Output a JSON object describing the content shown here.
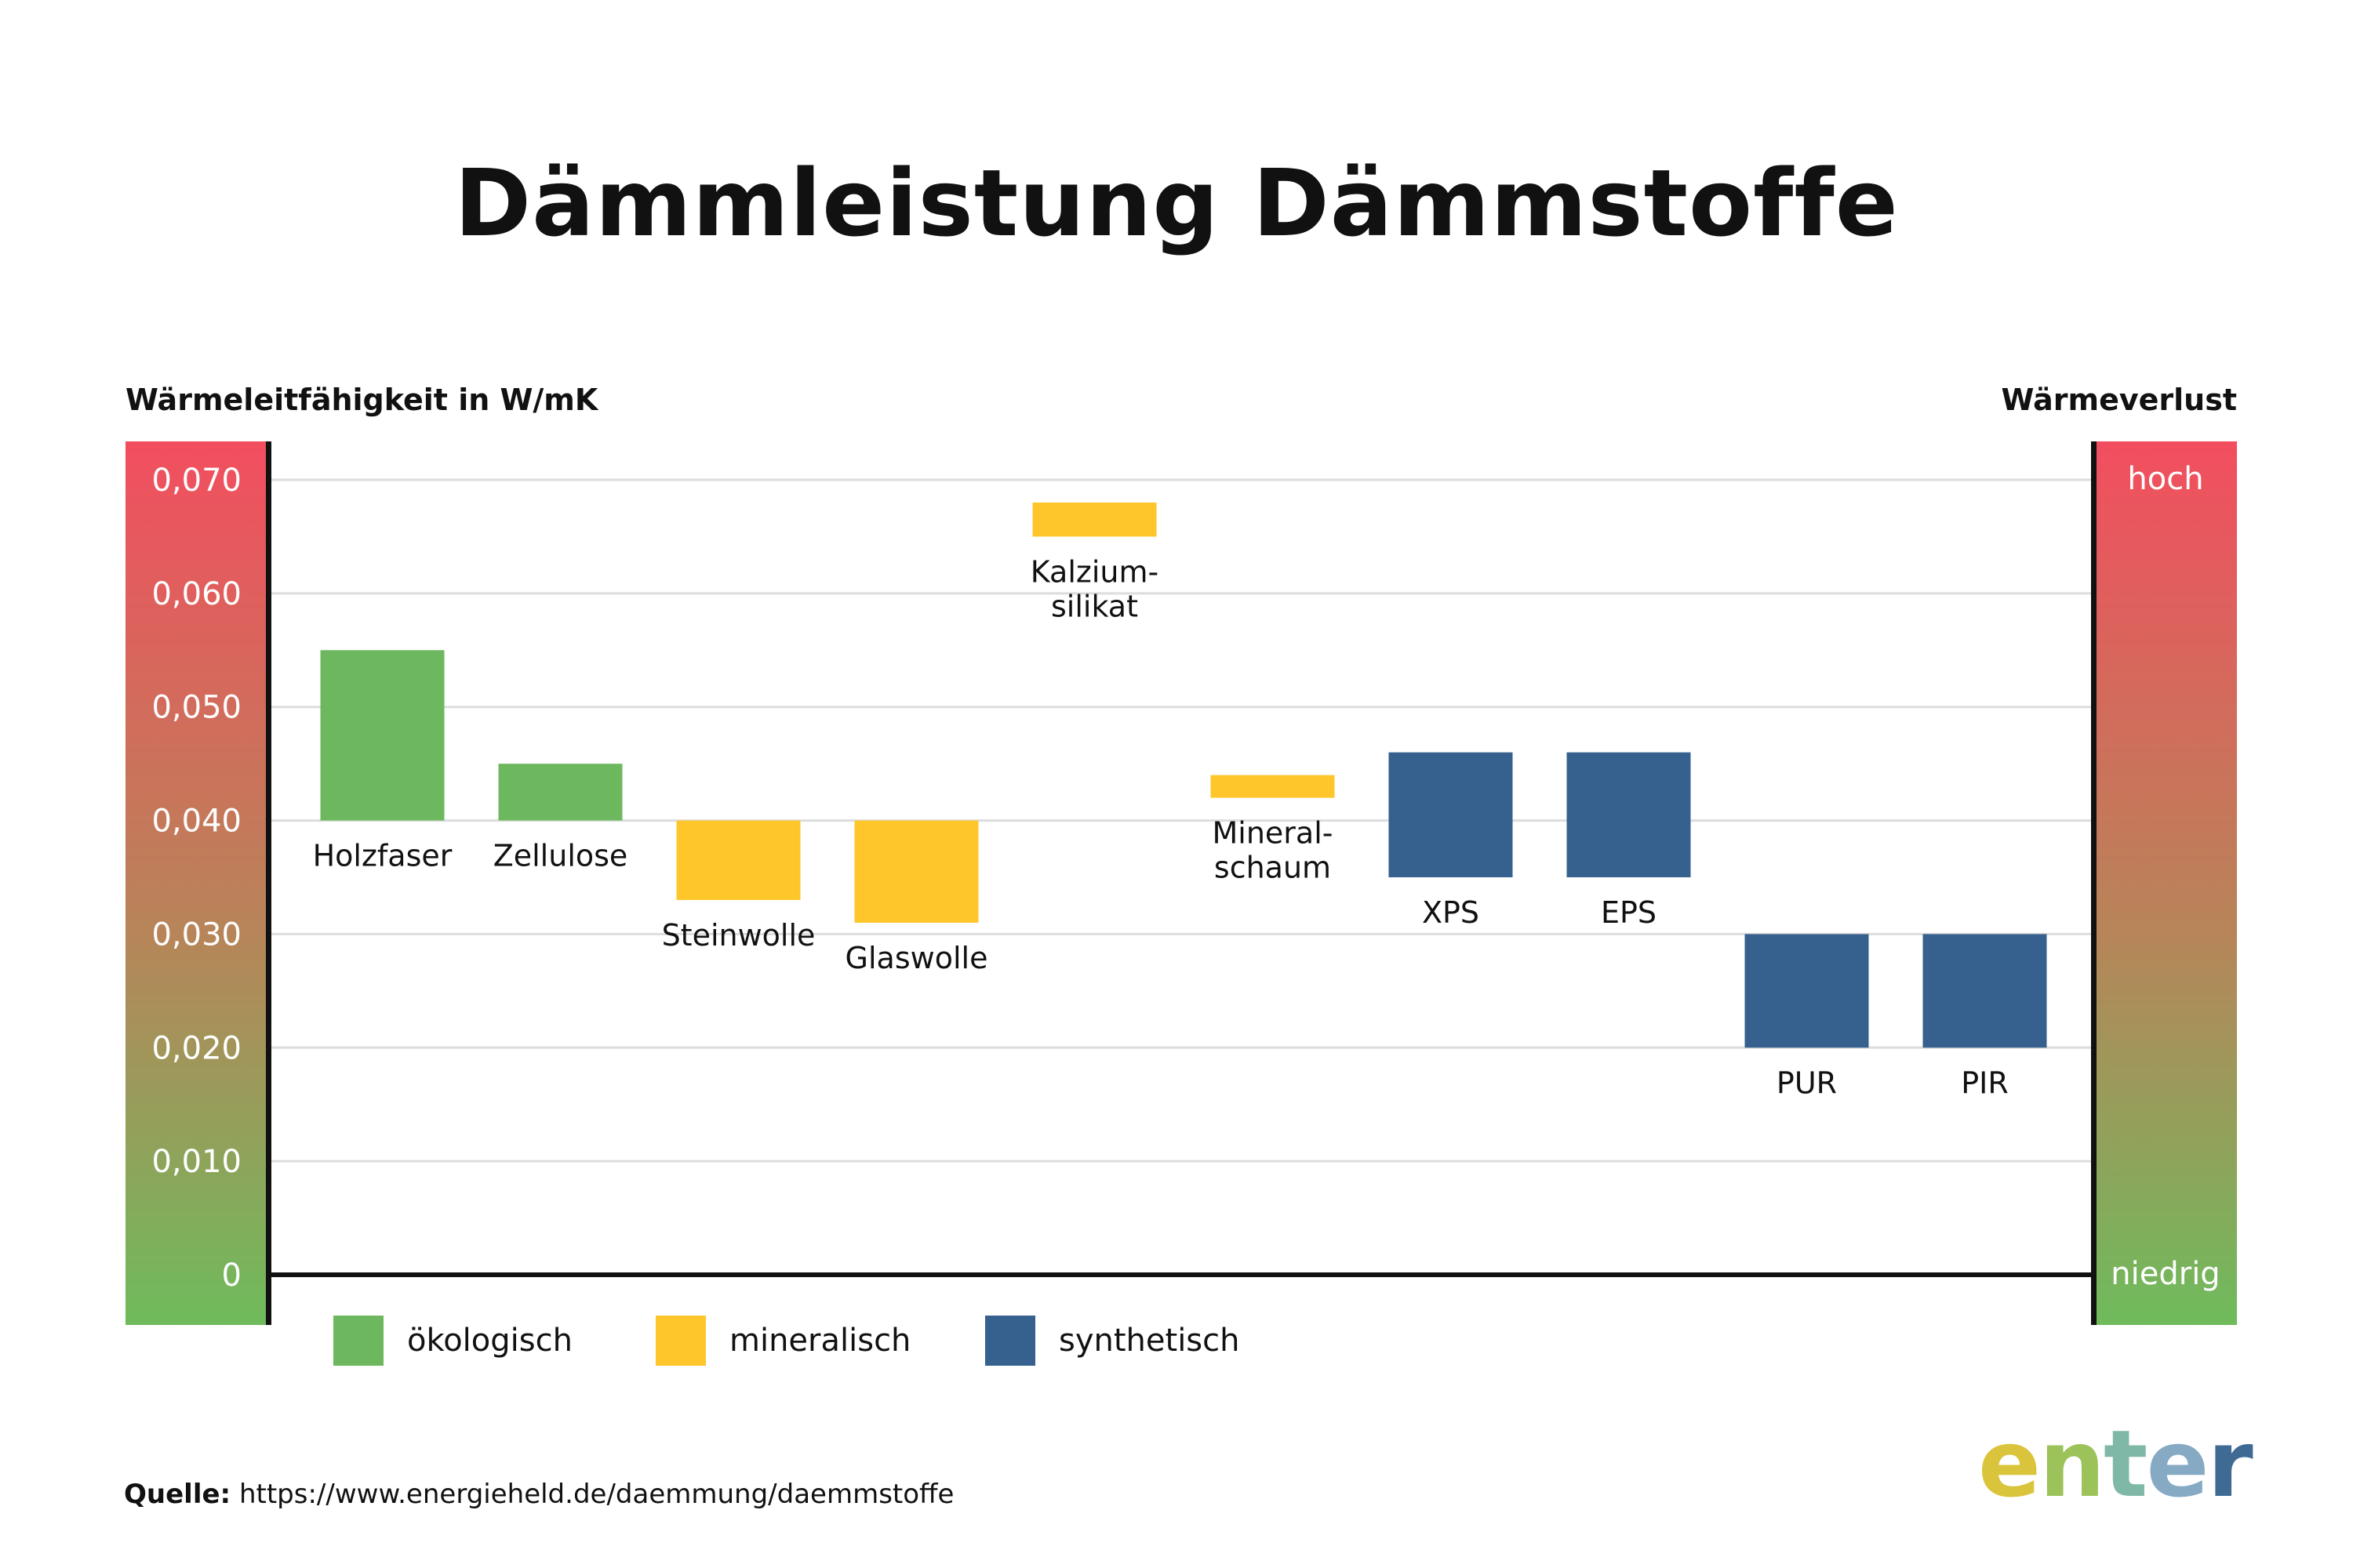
{
  "title": "Dämmleistung Dämmstoffe",
  "left_axis_title": "Wärmeleitfähigkeit in W/mK",
  "right_axis_title": "Wärmeverlust",
  "right_scale": {
    "top": "hoch",
    "bottom": "niedrig"
  },
  "source": {
    "label": "Quelle:",
    "url": "https://www.energieheld.de/daemmung/daemmstoffe"
  },
  "logo": {
    "letters": [
      "e",
      "n",
      "t",
      "e",
      "r"
    ],
    "colors": [
      "#d9c43c",
      "#9cc25a",
      "#7fb8a6",
      "#86a9c4",
      "#3f6a94"
    ]
  },
  "colors": {
    "ökologisch": "#6db85e",
    "mineralisch": "#fec62a",
    "synthetisch": "#36608e"
  },
  "chart_data": {
    "type": "bar",
    "subtype": "floating-range",
    "ylabel": "Wärmeleitfähigkeit in W/mK",
    "ylim": [
      0,
      0.07
    ],
    "yticks": [
      {
        "value": 0.07,
        "label": "0,070"
      },
      {
        "value": 0.06,
        "label": "0,060"
      },
      {
        "value": 0.05,
        "label": "0,050"
      },
      {
        "value": 0.04,
        "label": "0,040"
      },
      {
        "value": 0.03,
        "label": "0,030"
      },
      {
        "value": 0.02,
        "label": "0,020"
      },
      {
        "value": 0.01,
        "label": "0,010"
      },
      {
        "value": 0,
        "label": "0"
      }
    ],
    "grid": true,
    "legend": "bottom-left",
    "legend_entries": [
      {
        "name": "ökologisch",
        "group": "ökologisch"
      },
      {
        "name": "mineralisch",
        "group": "mineralisch"
      },
      {
        "name": "synthetisch",
        "group": "synthetisch"
      }
    ],
    "bars": [
      {
        "label": [
          "Holzfaser"
        ],
        "group": "ökologisch",
        "low": 0.04,
        "high": 0.055
      },
      {
        "label": [
          "Zellulose"
        ],
        "group": "ökologisch",
        "low": 0.04,
        "high": 0.045
      },
      {
        "label": [
          "Steinwolle"
        ],
        "group": "mineralisch",
        "low": 0.033,
        "high": 0.04
      },
      {
        "label": [
          "Glaswolle"
        ],
        "group": "mineralisch",
        "low": 0.031,
        "high": 0.04
      },
      {
        "label": [
          "Kalzium-",
          "silikat"
        ],
        "group": "mineralisch",
        "low": 0.065,
        "high": 0.068
      },
      {
        "label": [
          "Mineral-",
          "schaum"
        ],
        "group": "mineralisch",
        "low": 0.042,
        "high": 0.044
      },
      {
        "label": [
          "XPS"
        ],
        "group": "synthetisch",
        "low": 0.035,
        "high": 0.046
      },
      {
        "label": [
          "EPS"
        ],
        "group": "synthetisch",
        "low": 0.035,
        "high": 0.046
      },
      {
        "label": [
          "PUR"
        ],
        "group": "synthetisch",
        "low": 0.02,
        "high": 0.03
      },
      {
        "label": [
          "PIR"
        ],
        "group": "synthetisch",
        "low": 0.02,
        "high": 0.03
      }
    ]
  }
}
